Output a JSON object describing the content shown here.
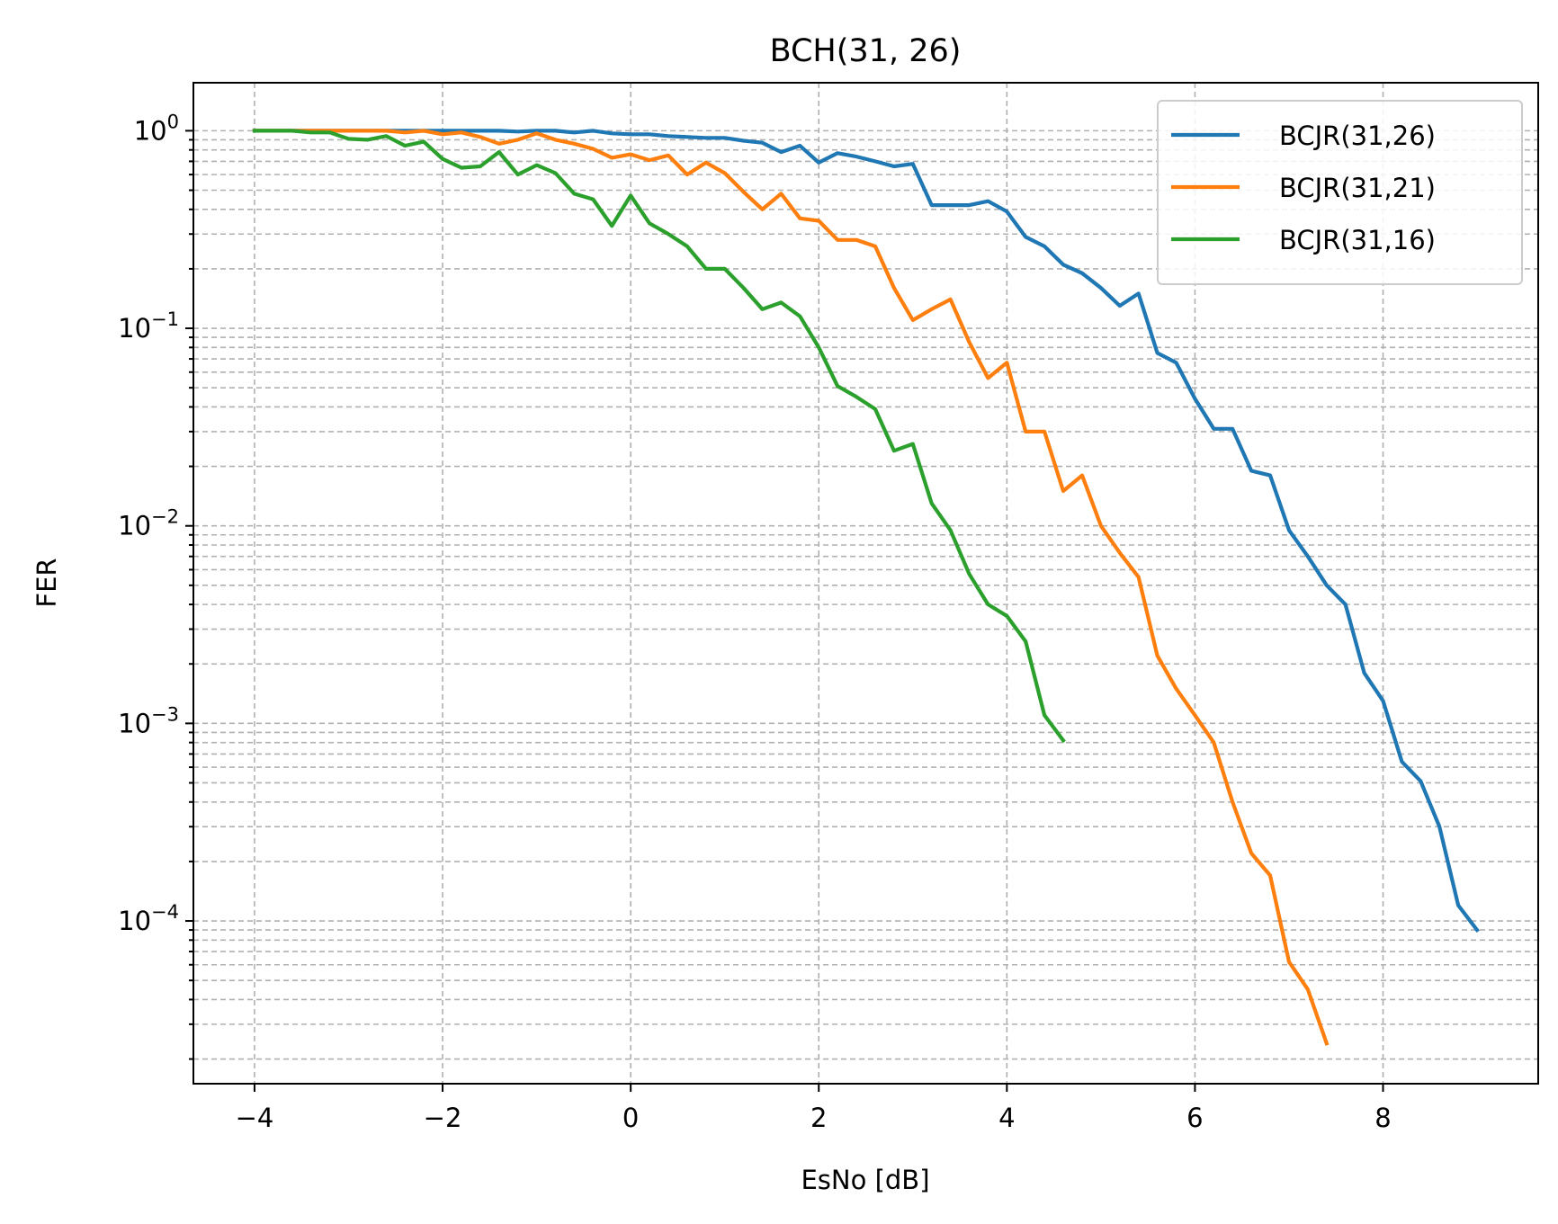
{
  "chart_data": {
    "type": "line",
    "title": "BCH(31, 26)",
    "xlabel": "EsNo [dB]",
    "ylabel": "FER",
    "yscale": "log",
    "xlim": [
      -4.65,
      9.65
    ],
    "ylim": [
      1.5e-05,
      1.75
    ],
    "xticks": [
      -4,
      -2,
      0,
      2,
      4,
      6,
      8
    ],
    "xtick_labels": [
      "−4",
      "−2",
      "0",
      "2",
      "4",
      "6",
      "8"
    ],
    "yticks": [
      1,
      0.1,
      0.01,
      0.001,
      0.0001
    ],
    "ytick_labels": [
      {
        "base": "10",
        "exp": "0"
      },
      {
        "base": "10",
        "exp": "−1"
      },
      {
        "base": "10",
        "exp": "−2"
      },
      {
        "base": "10",
        "exp": "−3"
      },
      {
        "base": "10",
        "exp": "−4"
      }
    ],
    "grid": true,
    "legend_position": "top-right",
    "series": [
      {
        "name": "BCJR(31,26)",
        "color": "#1f77b4",
        "x": [
          -4,
          -3.8,
          -3.6,
          -3.4,
          -3.2,
          -3,
          -2.8,
          -2.6,
          -2.4,
          -2.2,
          -2,
          -1.8,
          -1.6,
          -1.4,
          -1.2,
          -1,
          -0.8,
          -0.6,
          -0.4,
          -0.2,
          0,
          0.2,
          0.4,
          0.6,
          0.8,
          1,
          1.2,
          1.4,
          1.6,
          1.8,
          2,
          2.2,
          2.4,
          2.6,
          2.8,
          3,
          3.2,
          3.4,
          3.6,
          3.8,
          4,
          4.2,
          4.4,
          4.6,
          4.8,
          5,
          5.2,
          5.4,
          5.6,
          5.8,
          6,
          6.2,
          6.4,
          6.6,
          6.8,
          7,
          7.2,
          7.4,
          7.6,
          7.8,
          8,
          8.2,
          8.4,
          8.6,
          8.8,
          9
        ],
        "y": [
          1,
          1,
          1,
          1,
          1,
          1,
          1,
          1,
          1,
          1,
          1,
          1,
          1,
          1,
          0.99,
          1,
          1,
          0.98,
          1,
          0.97,
          0.96,
          0.96,
          0.94,
          0.93,
          0.92,
          0.92,
          0.89,
          0.87,
          0.78,
          0.84,
          0.69,
          0.77,
          0.74,
          0.7,
          0.66,
          0.68,
          0.42,
          0.42,
          0.42,
          0.44,
          0.39,
          0.29,
          0.26,
          0.21,
          0.19,
          0.16,
          0.13,
          0.15,
          0.075,
          0.067,
          0.044,
          0.031,
          0.031,
          0.019,
          0.018,
          0.0095,
          0.007,
          0.005,
          0.004,
          0.0018,
          0.0013,
          0.00064,
          0.00051,
          0.0003,
          0.00012,
          9e-05
        ]
      },
      {
        "name": "BCJR(31,21)",
        "color": "#ff7f0e",
        "x": [
          -4,
          -3.8,
          -3.6,
          -3.4,
          -3.2,
          -3,
          -2.8,
          -2.6,
          -2.4,
          -2.2,
          -2,
          -1.8,
          -1.6,
          -1.4,
          -1.2,
          -1,
          -0.8,
          -0.6,
          -0.4,
          -0.2,
          0,
          0.2,
          0.4,
          0.6,
          0.8,
          1,
          1.2,
          1.4,
          1.6,
          1.8,
          2,
          2.2,
          2.4,
          2.6,
          2.8,
          3,
          3.2,
          3.4,
          3.6,
          3.8,
          4,
          4.2,
          4.4,
          4.6,
          4.8,
          5,
          5.2,
          5.4,
          5.6,
          5.8,
          6,
          6.2,
          6.4,
          6.6,
          6.8,
          7,
          7.2,
          7.4
        ],
        "y": [
          1,
          1,
          1,
          1,
          1,
          1,
          1,
          1,
          0.98,
          1,
          0.96,
          0.98,
          0.93,
          0.86,
          0.9,
          0.97,
          0.9,
          0.86,
          0.81,
          0.73,
          0.76,
          0.71,
          0.75,
          0.6,
          0.69,
          0.61,
          0.49,
          0.4,
          0.48,
          0.36,
          0.35,
          0.28,
          0.28,
          0.26,
          0.16,
          0.11,
          0.125,
          0.14,
          0.085,
          0.056,
          0.067,
          0.03,
          0.03,
          0.015,
          0.018,
          0.01,
          0.0073,
          0.0055,
          0.0022,
          0.0015,
          0.0011,
          0.0008,
          0.0004,
          0.00022,
          0.00017,
          6.2e-05,
          4.5e-05,
          2.4e-05
        ]
      },
      {
        "name": "BCJR(31,16)",
        "color": "#2ca02c",
        "x": [
          -4,
          -3.8,
          -3.6,
          -3.4,
          -3.2,
          -3,
          -2.8,
          -2.6,
          -2.4,
          -2.2,
          -2,
          -1.8,
          -1.6,
          -1.4,
          -1.2,
          -1,
          -0.8,
          -0.6,
          -0.4,
          -0.2,
          0,
          0.2,
          0.4,
          0.6,
          0.8,
          1,
          1.2,
          1.4,
          1.6,
          1.8,
          2,
          2.2,
          2.4,
          2.6,
          2.8,
          3,
          3.2,
          3.4,
          3.6,
          3.8,
          4,
          4.2,
          4.4,
          4.6
        ],
        "y": [
          1,
          1,
          1,
          0.98,
          0.98,
          0.91,
          0.9,
          0.94,
          0.84,
          0.88,
          0.72,
          0.65,
          0.66,
          0.78,
          0.6,
          0.67,
          0.61,
          0.48,
          0.45,
          0.33,
          0.47,
          0.34,
          0.3,
          0.26,
          0.2,
          0.2,
          0.16,
          0.125,
          0.135,
          0.115,
          0.08,
          0.051,
          0.045,
          0.039,
          0.024,
          0.026,
          0.013,
          0.0095,
          0.0057,
          0.004,
          0.0035,
          0.0026,
          0.0011,
          0.00082
        ]
      }
    ]
  }
}
